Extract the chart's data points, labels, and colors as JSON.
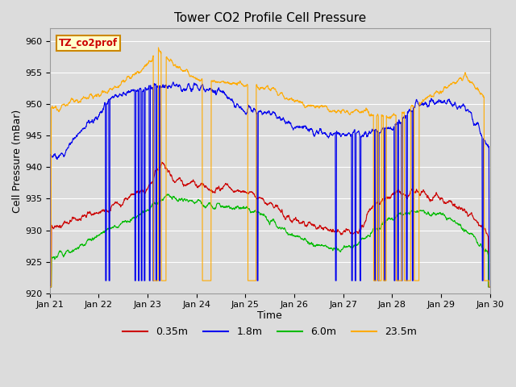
{
  "title": "Tower CO2 Profile Cell Pressure",
  "xlabel": "Time",
  "ylabel": "Cell Pressure (mBar)",
  "ylim": [
    920,
    962
  ],
  "yticks": [
    920,
    925,
    930,
    935,
    940,
    945,
    950,
    955,
    960
  ],
  "x_tick_labels": [
    "Jan 21",
    "Jan 22",
    "Jan 23",
    "Jan 24",
    "Jan 25",
    "Jan 26",
    "Jan 27",
    "Jan 28",
    "Jan 29",
    "Jan 30"
  ],
  "plot_bg_color": "#dcdcdc",
  "grid_color": "#ffffff",
  "label_box_text": "TZ_co2prof",
  "label_box_facecolor": "#ffffcc",
  "label_box_edgecolor": "#cc8800",
  "colors": {
    "0.35m": "#cc0000",
    "1.8m": "#0000ee",
    "6.0m": "#00bb00",
    "23.5m": "#ffaa00"
  },
  "title_fontsize": 11,
  "axis_label_fontsize": 9,
  "tick_fontsize": 8
}
